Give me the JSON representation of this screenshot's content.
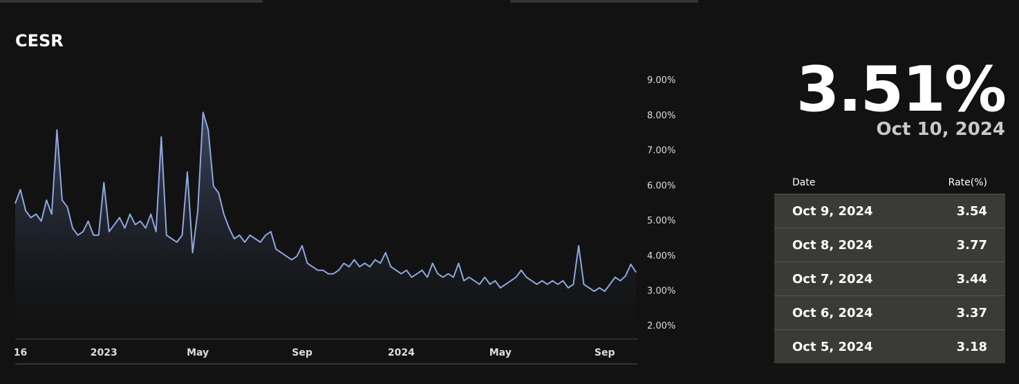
{
  "chart_data": {
    "type": "line",
    "title": "CESR",
    "categories": [
      null,
      "16",
      null,
      null,
      null,
      null,
      null,
      null,
      null,
      null,
      null,
      null,
      null,
      null,
      null,
      null,
      null,
      "2023",
      null,
      null,
      null,
      null,
      null,
      null,
      null,
      null,
      null,
      null,
      null,
      null,
      null,
      null,
      null,
      null,
      null,
      "May",
      null,
      null,
      null,
      null,
      null,
      null,
      null,
      null,
      null,
      null,
      null,
      null,
      null,
      null,
      null,
      null,
      null,
      null,
      null,
      "Sep",
      null,
      null,
      null,
      null,
      null,
      null,
      null,
      null,
      null,
      null,
      null,
      null,
      null,
      null,
      null,
      null,
      null,
      null,
      "2024",
      null,
      null,
      null,
      null,
      null,
      null,
      null,
      null,
      null,
      null,
      null,
      null,
      null,
      null,
      null,
      null,
      null,
      null,
      "May",
      null,
      null,
      null,
      null,
      null,
      null,
      null,
      null,
      null,
      null,
      null,
      null,
      null,
      null,
      null,
      null,
      null,
      null,
      null,
      "Sep",
      null,
      null,
      null,
      null,
      null,
      null
    ],
    "series": [
      {
        "color": "#8ea8e0",
        "values": [
          5.5,
          5.9,
          5.3,
          5.1,
          5.2,
          5.0,
          5.6,
          5.2,
          7.6,
          5.6,
          5.4,
          4.8,
          4.6,
          4.7,
          5.0,
          4.6,
          4.6,
          6.1,
          4.7,
          4.9,
          5.1,
          4.8,
          5.2,
          4.9,
          5.0,
          4.8,
          5.2,
          4.7,
          7.4,
          4.6,
          4.5,
          4.4,
          4.6,
          6.4,
          4.1,
          5.3,
          8.1,
          7.6,
          6.0,
          5.8,
          5.2,
          4.8,
          4.5,
          4.6,
          4.4,
          4.6,
          4.5,
          4.4,
          4.6,
          4.7,
          4.2,
          4.1,
          4.0,
          3.9,
          4.0,
          4.3,
          3.8,
          3.7,
          3.6,
          3.6,
          3.5,
          3.5,
          3.6,
          3.8,
          3.7,
          3.9,
          3.7,
          3.8,
          3.7,
          3.9,
          3.8,
          4.1,
          3.7,
          3.6,
          3.5,
          3.6,
          3.4,
          3.5,
          3.6,
          3.4,
          3.8,
          3.5,
          3.4,
          3.5,
          3.4,
          3.8,
          3.3,
          3.4,
          3.3,
          3.2,
          3.4,
          3.2,
          3.3,
          3.1,
          3.2,
          3.3,
          3.4,
          3.6,
          3.4,
          3.3,
          3.2,
          3.3,
          3.2,
          3.3,
          3.2,
          3.3,
          3.1,
          3.2,
          4.3,
          3.2,
          3.1,
          3.0,
          3.1,
          3.0,
          3.2,
          3.4,
          3.3,
          3.44,
          3.77,
          3.54
        ]
      }
    ],
    "ylim": [
      1.64,
      9.33
    ],
    "yticks": [
      {
        "value": 2,
        "label": "2.00%"
      },
      {
        "value": 3,
        "label": "3.00%"
      },
      {
        "value": 4,
        "label": "4.00%"
      },
      {
        "value": 5,
        "label": "5.00%"
      },
      {
        "value": 6,
        "label": "6.00%"
      },
      {
        "value": 7,
        "label": "7.00%"
      },
      {
        "value": 8,
        "label": "8.00%"
      },
      {
        "value": 9,
        "label": "9.00%"
      }
    ]
  },
  "panel": {
    "value": "3.51%",
    "date": "Oct 10, 2024",
    "table": {
      "columns": [
        "Date",
        "Rate(%)"
      ],
      "rows": [
        [
          "Oct 9, 2024",
          3.54
        ],
        [
          "Oct 8, 2024",
          3.77
        ],
        [
          "Oct 7, 2024",
          3.44
        ],
        [
          "Oct 6, 2024",
          3.37
        ],
        [
          "Oct 5, 2024",
          3.18
        ]
      ]
    }
  }
}
